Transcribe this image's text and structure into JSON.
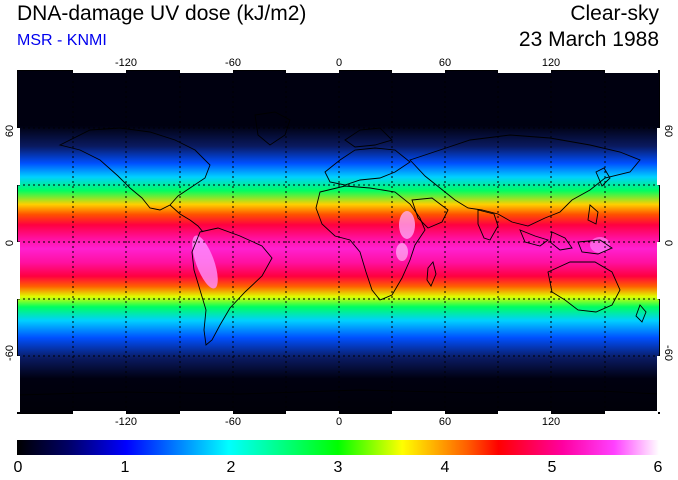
{
  "header": {
    "title": "DNA-damage UV dose (kJ/m2)",
    "subtitle": "MSR - KNMI",
    "condition": "Clear-sky",
    "date": "23 March 1988"
  },
  "axes": {
    "lon_ticks": [
      "-120",
      "-60",
      "0",
      "60",
      "120"
    ],
    "lat_ticks": [
      "60",
      "0",
      "-60"
    ]
  },
  "colorbar": {
    "labels": [
      "0",
      "1",
      "2",
      "3",
      "4",
      "5",
      "6"
    ],
    "colors": [
      "#000000",
      "#000066",
      "#0000ff",
      "#00ffff",
      "#00ff00",
      "#ffff00",
      "#ff0000",
      "#ff00ff",
      "#ffffff"
    ]
  },
  "map": {
    "field": "UV dose",
    "colors": {
      "polar": "#000010",
      "high": "#0a1a60",
      "mid": "#00a0ff",
      "sub": "#00ff60",
      "warm": "#ff9000",
      "tropic": "#ff0050",
      "equator": "#ff20c0",
      "coast": "#000000"
    }
  }
}
